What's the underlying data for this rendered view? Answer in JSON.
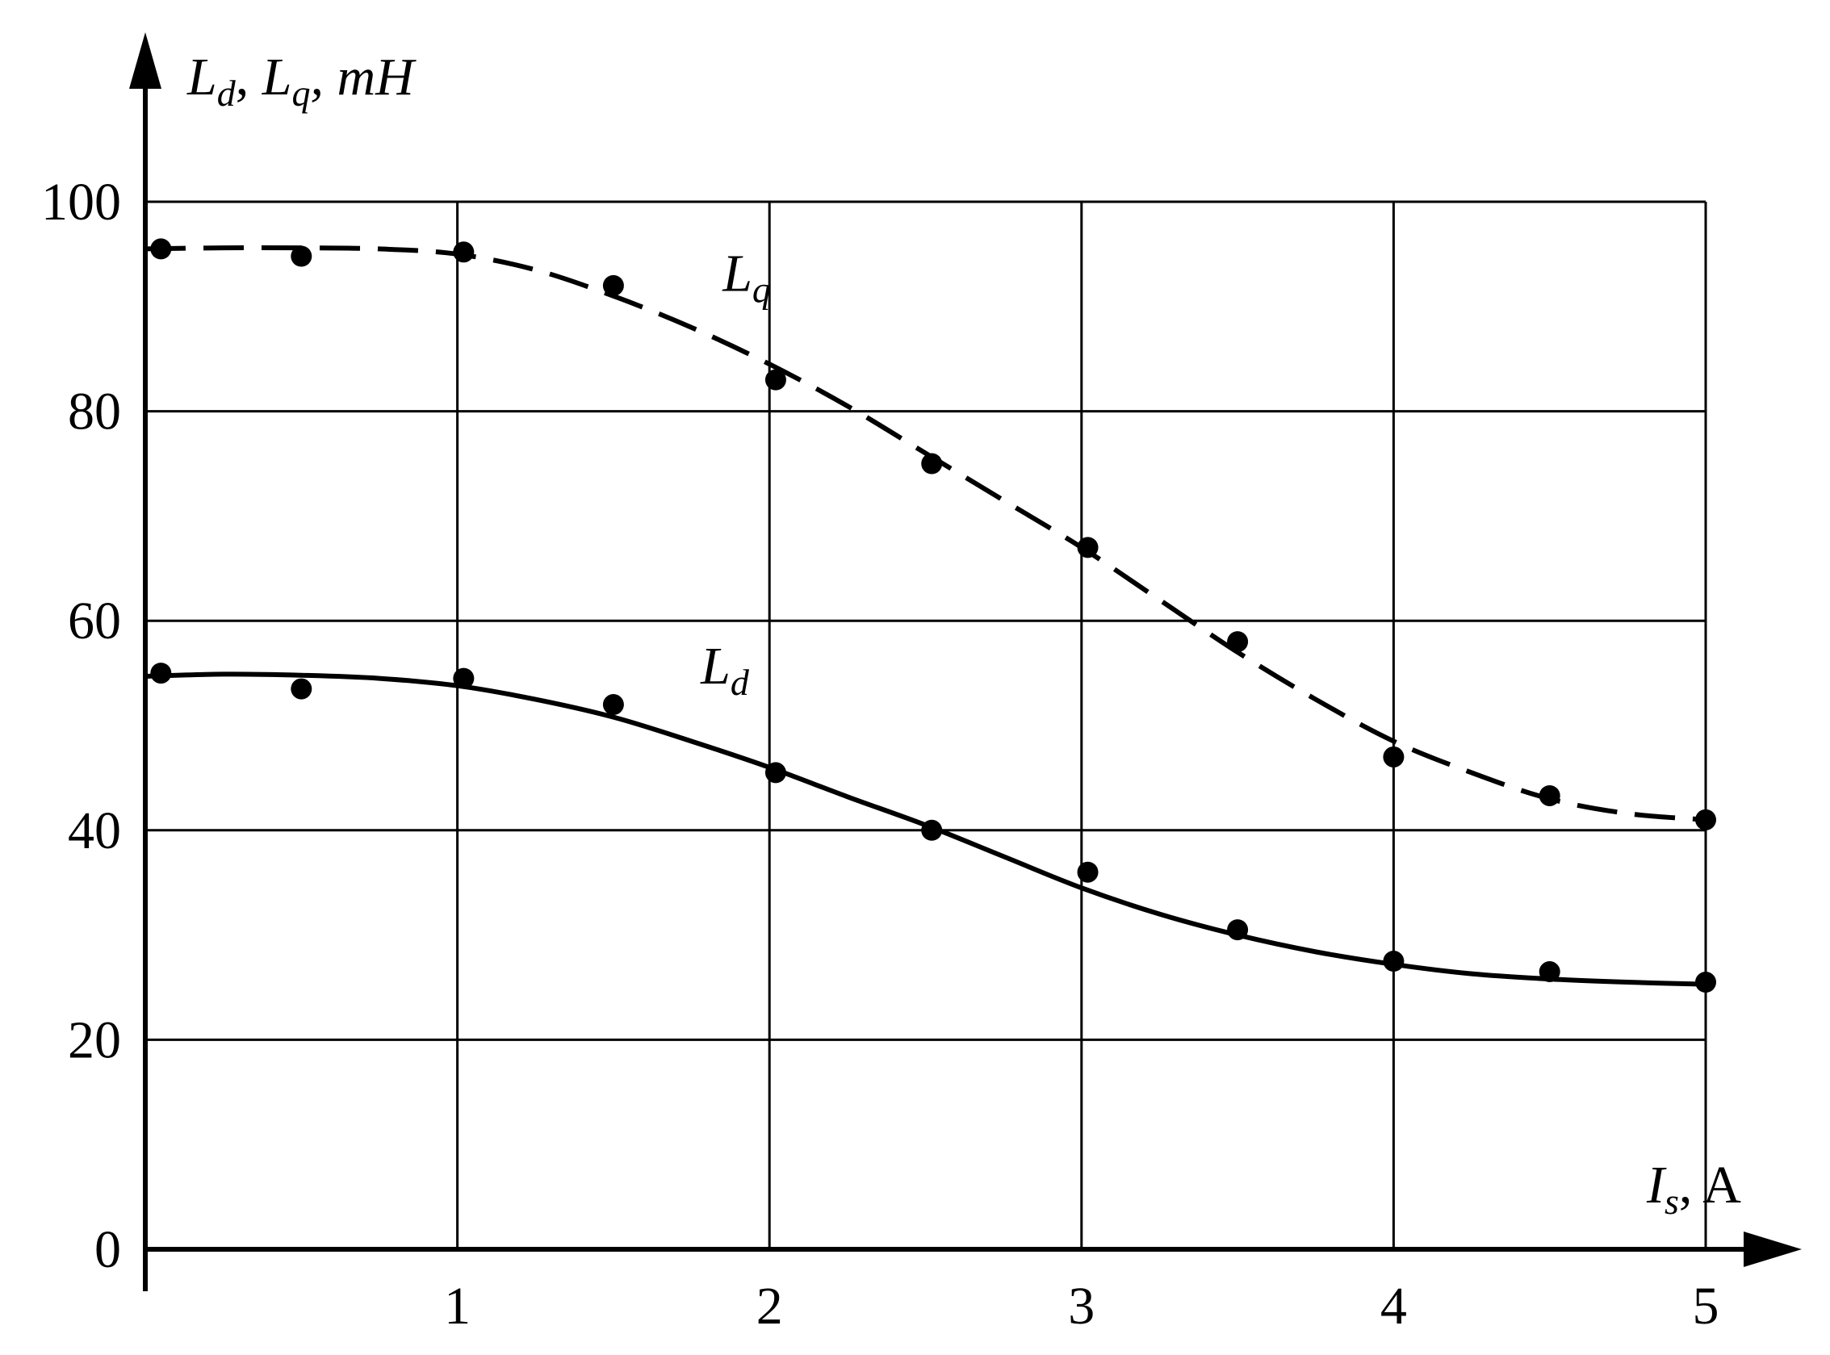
{
  "chart_data": {
    "type": "line",
    "ylabel_parts": {
      "L1": "L",
      "sub1": "d",
      "sep1": ", ",
      "L2": "L",
      "sub2": "q",
      "unit": ", mH"
    },
    "xlabel_parts": {
      "I": "I",
      "sub": "s",
      "unit": ", A"
    },
    "xlim": [
      0,
      5
    ],
    "ylim": [
      0,
      100
    ],
    "x_ticks": [
      1,
      2,
      3,
      4,
      5
    ],
    "x_tick_labels": [
      "1",
      "2",
      "3",
      "4",
      "5"
    ],
    "y_ticks": [
      0,
      20,
      40,
      60,
      80,
      100
    ],
    "y_tick_labels": [
      "0",
      "20",
      "40",
      "60",
      "80",
      "100"
    ],
    "grid": true,
    "series": [
      {
        "name": "Lq",
        "label_main": "L",
        "label_sub": "q",
        "style": "dashed",
        "color": "#000000",
        "points": {
          "x": [
            0.05,
            0.5,
            1.02,
            1.5,
            2.02,
            2.52,
            3.02,
            3.5,
            4.0,
            4.5,
            5.0
          ],
          "y": [
            95.5,
            94.8,
            95.2,
            92.0,
            83.0,
            75.0,
            67.0,
            58.0,
            47.0,
            43.3,
            41.0
          ]
        },
        "curve": {
          "x": [
            0.0,
            0.25,
            0.5,
            0.75,
            1.0,
            1.25,
            1.5,
            1.75,
            2.0,
            2.25,
            2.5,
            2.75,
            3.0,
            3.25,
            3.5,
            3.75,
            4.0,
            4.25,
            4.5,
            4.75,
            5.0
          ],
          "y": [
            95.5,
            95.6,
            95.6,
            95.5,
            95.0,
            93.5,
            91.0,
            88.0,
            84.5,
            80.5,
            76.0,
            71.5,
            67.0,
            62.0,
            57.0,
            52.5,
            48.5,
            45.5,
            43.0,
            41.6,
            41.0
          ]
        },
        "label_pos": [
          1.85,
          91.5
        ]
      },
      {
        "name": "Ld",
        "label_main": "L",
        "label_sub": "d",
        "style": "solid",
        "color": "#000000",
        "points": {
          "x": [
            0.05,
            0.5,
            1.02,
            1.5,
            2.02,
            2.52,
            3.02,
            3.5,
            4.0,
            4.5,
            5.0
          ],
          "y": [
            55.0,
            53.5,
            54.5,
            52.0,
            45.5,
            40.0,
            36.0,
            30.5,
            27.5,
            26.5,
            25.5
          ]
        },
        "curve": {
          "x": [
            0.0,
            0.25,
            0.5,
            0.75,
            1.0,
            1.25,
            1.5,
            1.75,
            2.0,
            2.25,
            2.5,
            2.75,
            3.0,
            3.25,
            3.5,
            3.75,
            4.0,
            4.25,
            4.5,
            4.75,
            5.0
          ],
          "y": [
            54.7,
            54.9,
            54.8,
            54.5,
            53.8,
            52.5,
            50.8,
            48.5,
            46.0,
            43.2,
            40.5,
            37.5,
            34.5,
            32.0,
            30.0,
            28.4,
            27.2,
            26.3,
            25.8,
            25.5,
            25.3
          ]
        },
        "label_pos": [
          1.78,
          54.0
        ]
      }
    ]
  }
}
